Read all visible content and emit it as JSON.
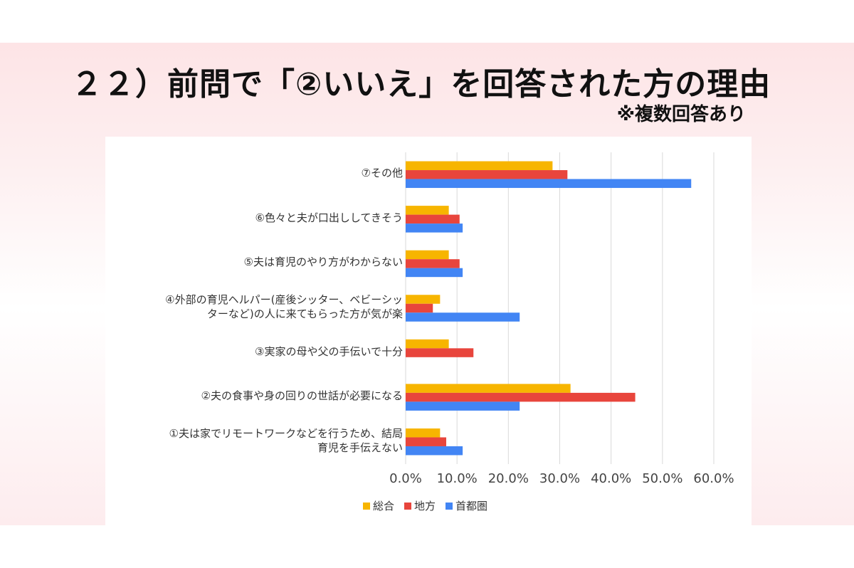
{
  "title": "２２）前問で「②いいえ」を回答された方の理由",
  "subtitle": "※複数回答あり",
  "colors": {
    "総合": "#f7b500",
    "地方": "#e8453c",
    "首都圏": "#4285f4",
    "grid": "#d9d9d9"
  },
  "chart_data": {
    "type": "bar",
    "orientation": "horizontal",
    "categories": [
      "⑦その他",
      "⑥色々と夫が口出ししてきそう",
      "⑤夫は育児のやり方がわからない",
      "④外部の育児ヘルパー(産後シッター、ベビーシッターなど)の人に来てもらった方が気が楽",
      "③実家の母や父の手伝いで十分",
      "②夫の食事や身の回りの世話が必要になる",
      "①夫は家でリモートワークなどを行うため、結局育児を手伝えない"
    ],
    "category_lines": [
      [
        "⑦その他"
      ],
      [
        "⑥色々と夫が口出ししてきそう"
      ],
      [
        "⑤夫は育児のやり方がわからない"
      ],
      [
        "④外部の育児ヘルパー(産後シッター、ベビーシッ",
        "ターなど)の人に来てもらった方が気が楽"
      ],
      [
        "③実家の母や父の手伝いで十分"
      ],
      [
        "②夫の食事や身の回りの世話が必要になる"
      ],
      [
        "①夫は家でリモートワークなどを行うため、結局",
        "育児を手伝えない"
      ]
    ],
    "series": [
      {
        "name": "総合",
        "values": [
          28.6,
          8.4,
          8.4,
          6.7,
          8.4,
          32.1,
          6.7
        ]
      },
      {
        "name": "地方",
        "values": [
          31.5,
          10.5,
          10.5,
          5.3,
          13.2,
          44.7,
          7.9
        ]
      },
      {
        "name": "首都圏",
        "values": [
          55.6,
          11.1,
          11.1,
          22.2,
          0.0,
          22.2,
          11.1
        ]
      }
    ],
    "x_ticks": [
      "0.0%",
      "10.0%",
      "20.0%",
      "30.0%",
      "40.0%",
      "50.0%",
      "60.0%"
    ],
    "xlim": [
      0,
      60
    ],
    "grid": true,
    "legend": "bottom"
  }
}
